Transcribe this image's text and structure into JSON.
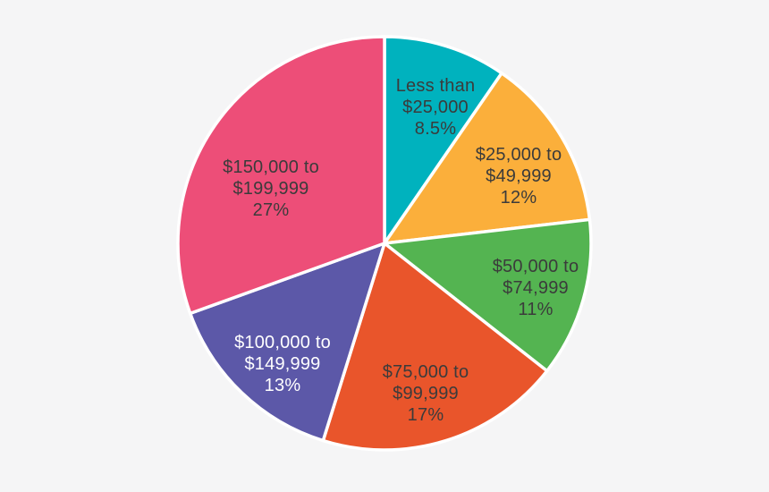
{
  "background_color": "#F5F5F6",
  "chart_data": {
    "type": "pie",
    "title": "",
    "legend": "none",
    "labels_position": "inside slices (category range + percentage)",
    "separator_color": "#FFFFFF",
    "default_text_color": "#3B3B3B",
    "start_angle_deg": 0,
    "direction": "clockwise",
    "slices": [
      {
        "category": "Less than $25,000",
        "label_lines": [
          "Less than",
          "$25,000"
        ],
        "pct_label": "8.5%",
        "value": 8.5,
        "color": "#00B2BE",
        "text_color": "#3B3B3B"
      },
      {
        "category": "$25,000 to $49,999",
        "label_lines": [
          "$25,000 to",
          "$49,999"
        ],
        "pct_label": "12%",
        "value": 12,
        "color": "#FBAF3B",
        "text_color": "#3B3B3B"
      },
      {
        "category": "$50,000 to $74,999",
        "label_lines": [
          "$50,000 to",
          "$74,999"
        ],
        "pct_label": "11%",
        "value": 11,
        "color": "#54B451",
        "text_color": "#3B3B3B"
      },
      {
        "category": "$75,000 to $99,999",
        "label_lines": [
          "$75,000 to",
          "$99,999"
        ],
        "pct_label": "17%",
        "value": 17,
        "color": "#E9552B",
        "text_color": "#3B3B3B"
      },
      {
        "category": "$100,000 to $149,999",
        "label_lines": [
          "$100,000 to",
          "$149,999"
        ],
        "pct_label": "13%",
        "value": 13,
        "color": "#5C58A8",
        "text_color": "#FFFFFF"
      },
      {
        "category": "$150,000 to $199,999",
        "label_lines": [
          "$150,000 to",
          "$199,999"
        ],
        "pct_label": "27%",
        "value": 27,
        "color": "#ED4E78",
        "text_color": "#3B3B3B"
      }
    ]
  }
}
